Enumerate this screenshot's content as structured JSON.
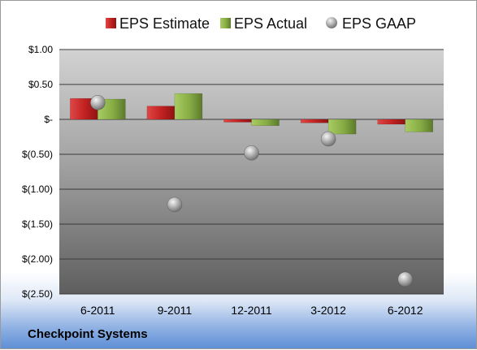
{
  "company": "Checkpoint Systems",
  "chart_data": {
    "type": "bar",
    "categories": [
      "6-2011",
      "9-2011",
      "12-2011",
      "3-2012",
      "6-2012"
    ],
    "series": [
      {
        "name": "EPS Estimate",
        "type": "bar",
        "color": "#cc2b2b",
        "values": [
          0.3,
          0.19,
          -0.04,
          -0.05,
          -0.07
        ]
      },
      {
        "name": "EPS Actual",
        "type": "bar",
        "color": "#8db34a",
        "values": [
          0.29,
          0.37,
          -0.09,
          -0.21,
          -0.18
        ]
      },
      {
        "name": "EPS GAAP",
        "type": "scatter",
        "color": "#a8a8a8",
        "values": [
          0.24,
          -1.22,
          -0.48,
          -0.28,
          -2.29
        ]
      }
    ],
    "y_ticks": [
      1.0,
      0.5,
      0,
      -0.5,
      -1.0,
      -1.5,
      -2.0,
      -2.5
    ],
    "y_tick_labels": [
      "$1.00",
      "$0.50",
      "$-",
      "$(0.50)",
      "$(1.00)",
      "$(1.50)",
      "$(2.00)",
      "$(2.50)"
    ],
    "ylim": [
      -2.5,
      1.0
    ],
    "grid": true,
    "legend_position": "top",
    "title": "",
    "xlabel": "",
    "ylabel": ""
  }
}
